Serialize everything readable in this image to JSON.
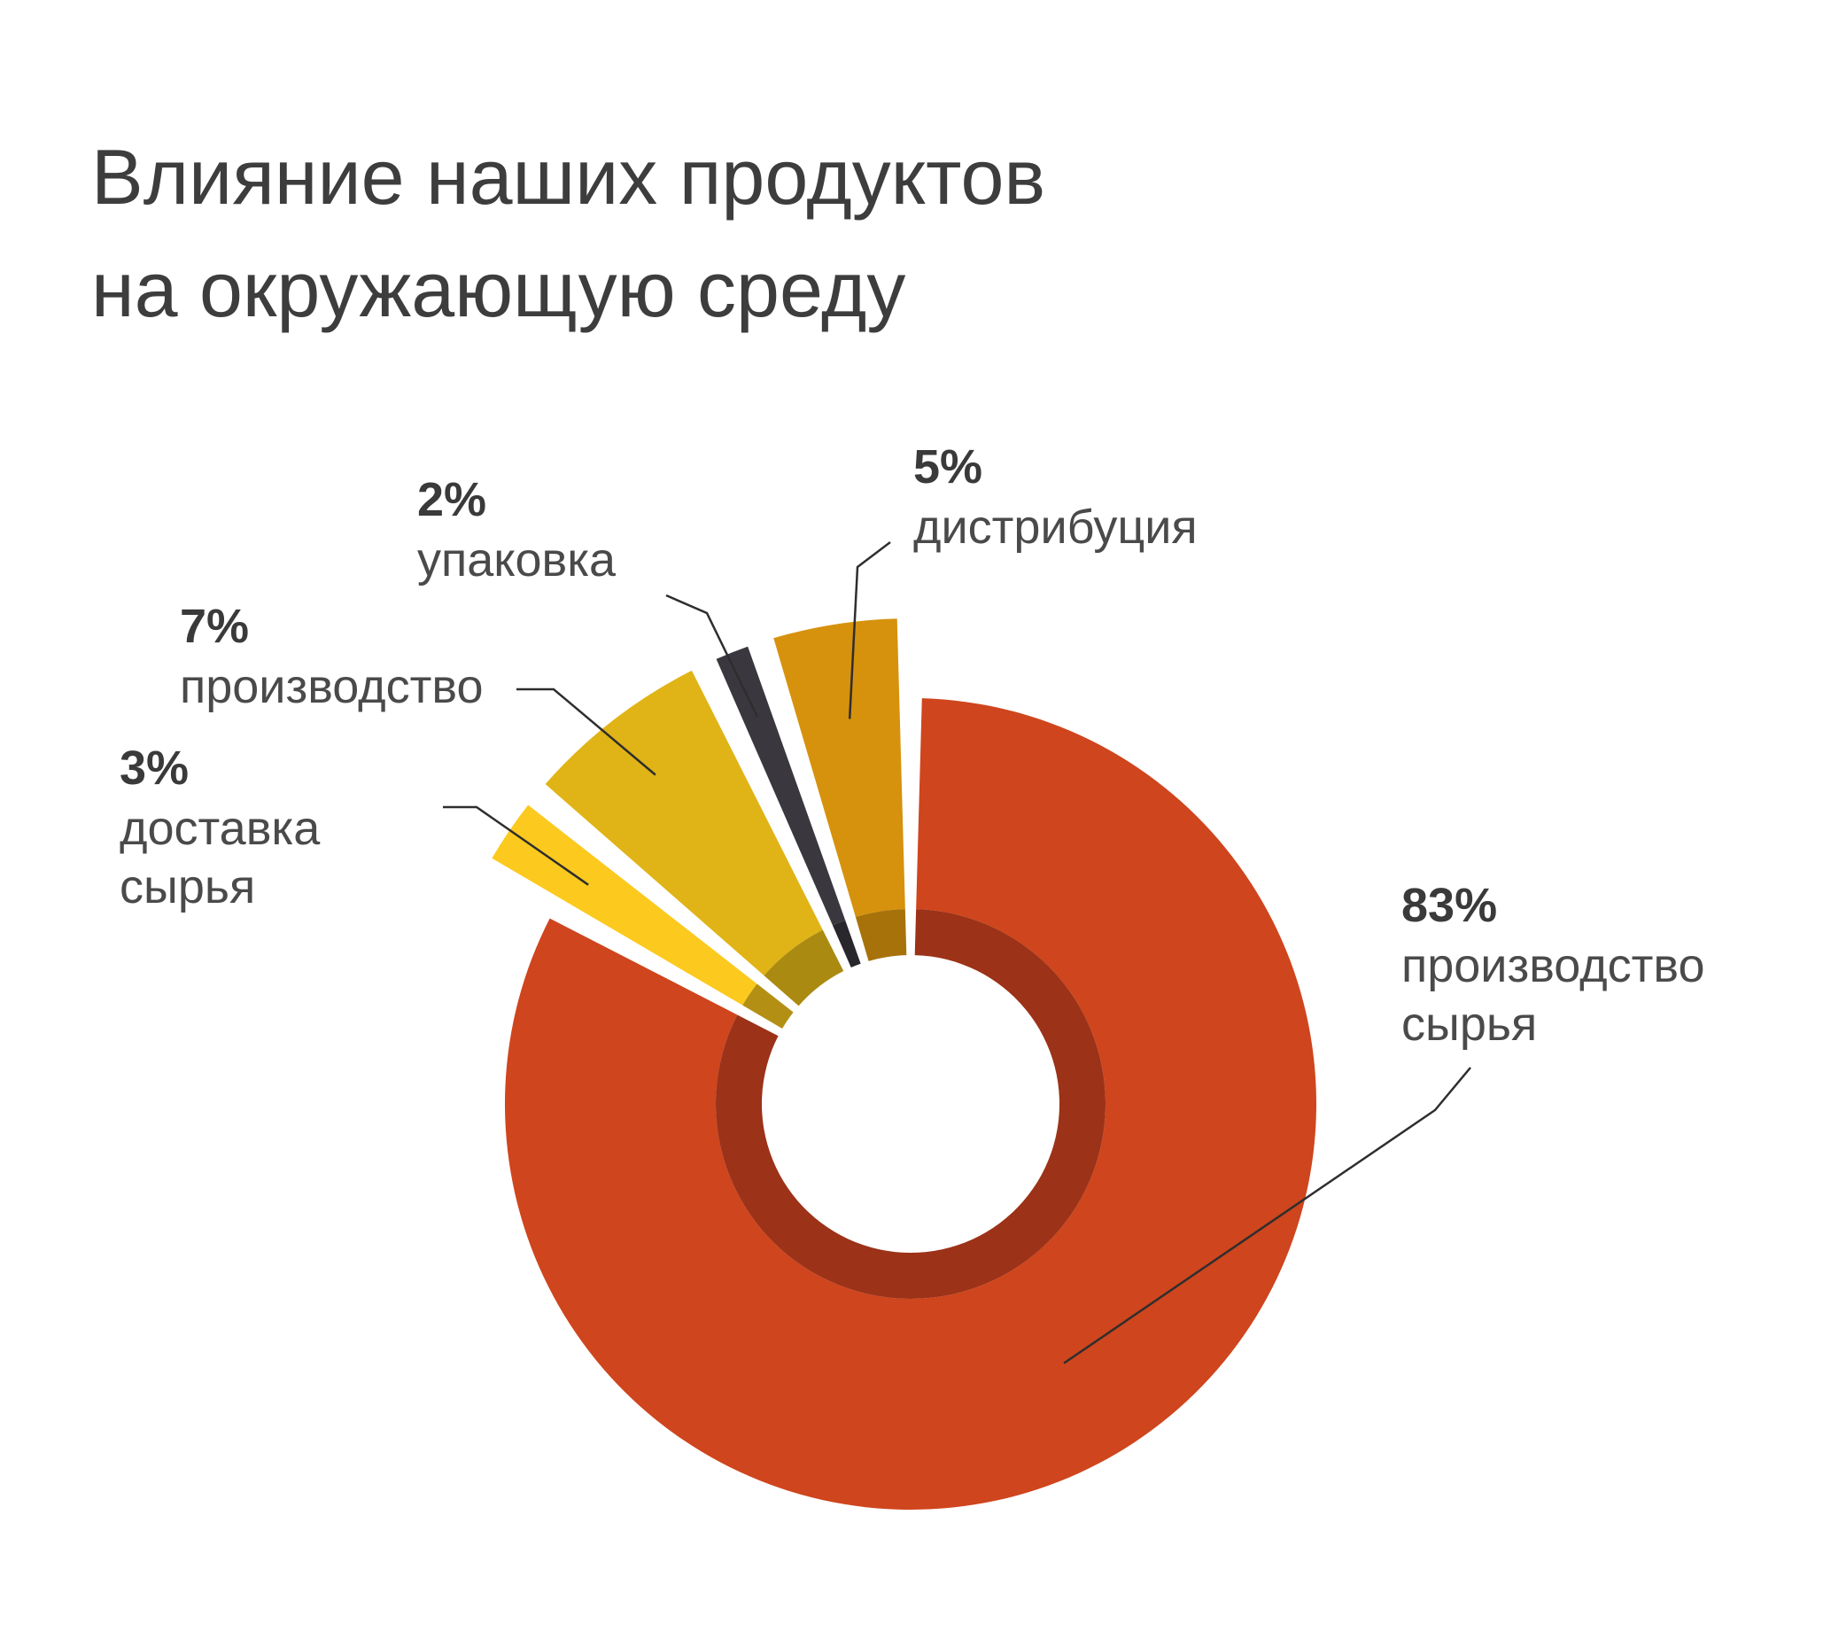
{
  "chart_data": {
    "type": "pie",
    "title_lines": [
      "Влияние наших продуктов",
      "на окружающую среду"
    ],
    "slices": [
      {
        "value": 83,
        "value_label": "83%",
        "label_lines": [
          "производство",
          "сырья"
        ],
        "color": "#cf451d",
        "inner_color": "#9c3217"
      },
      {
        "value": 3,
        "value_label": "3%",
        "label_lines": [
          "доставка",
          "сырья"
        ],
        "color": "#fcc91e",
        "inner_color": "#b39014"
      },
      {
        "value": 7,
        "value_label": "7%",
        "label_lines": [
          "производство"
        ],
        "color": "#e0b416",
        "inner_color": "#ab8a11"
      },
      {
        "value": 2,
        "value_label": "2%",
        "label_lines": [
          "упаковка"
        ],
        "color": "#3a373e",
        "inner_color": "#29272c"
      },
      {
        "value": 5,
        "value_label": "5%",
        "label_lines": [
          "дистрибуция"
        ],
        "color": "#d6920d",
        "inner_color": "#a7720a"
      }
    ],
    "legend": "none",
    "grid": false
  }
}
